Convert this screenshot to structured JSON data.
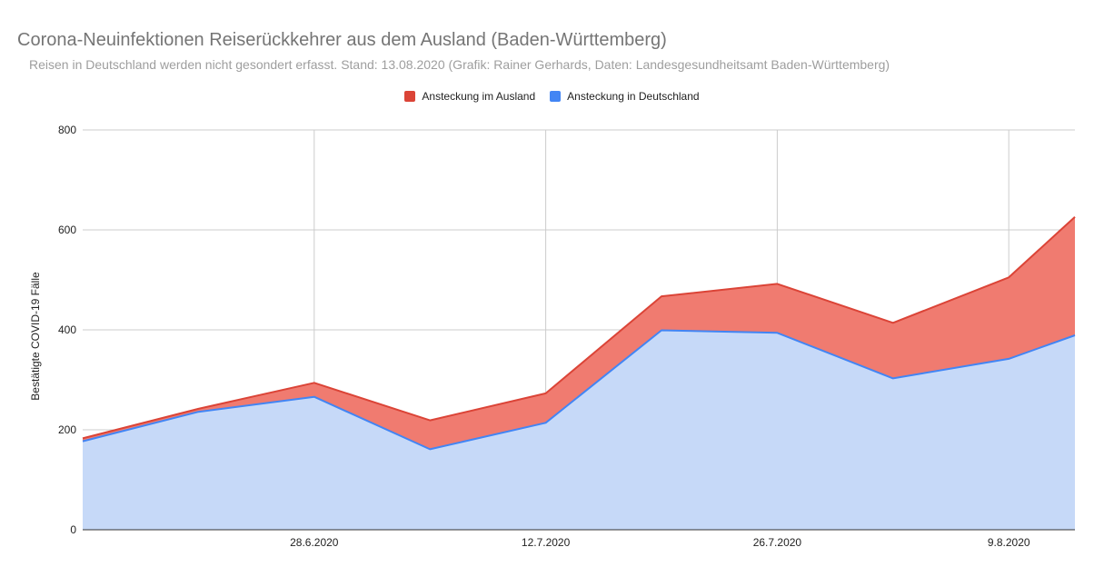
{
  "chart_data": {
    "type": "area",
    "stacked": true,
    "title": "Corona-Neuinfektionen Reiserückkehrer aus dem Ausland (Baden-Württemberg)",
    "subtitle": "Reisen in Deutschland werden nicht gesondert erfasst. Stand: 13.08.2020 (Grafik: Rainer Gerhards, Daten: Landesgesundheitsamt Baden-Württemberg)",
    "ylabel": "Bestätigte COVID-19 Fälle",
    "xlabel": "",
    "x": [
      "2020-06-14",
      "2020-06-21",
      "2020-06-28",
      "2020-07-05",
      "2020-07-12",
      "2020-07-19",
      "2020-07-26",
      "2020-08-02",
      "2020-08-09",
      "2020-08-13"
    ],
    "x_range": [
      "2020-06-14",
      "2020-08-13"
    ],
    "xticks": [
      "2020-06-28",
      "2020-07-12",
      "2020-07-26",
      "2020-08-09"
    ],
    "xtick_labels": [
      "28.6.2020",
      "12.7.2020",
      "26.7.2020",
      "9.8.2020"
    ],
    "ylim": [
      0,
      800
    ],
    "yticks": [
      0,
      200,
      400,
      600,
      800
    ],
    "grid": true,
    "legend_position": "top",
    "series": [
      {
        "name": "Ansteckung in Deutschland",
        "color": "#4285f4",
        "fill": "#c6d9f8",
        "values": [
          177,
          236,
          266,
          161,
          214,
          399,
          394,
          303,
          342,
          389
        ]
      },
      {
        "name": "Ansteckung im Ausland",
        "color": "#db4437",
        "fill": "#f07b70",
        "values": [
          6,
          6,
          28,
          58,
          59,
          68,
          98,
          111,
          163,
          237
        ]
      }
    ],
    "dates": [
      "2020-06-14",
      "2020-06-21",
      "2020-06-28",
      "2020-07-05",
      "2020-07-12",
      "2020-07-19",
      "2020-07-26",
      "2020-08-02",
      "2020-08-09",
      "2020-08-13"
    ]
  }
}
